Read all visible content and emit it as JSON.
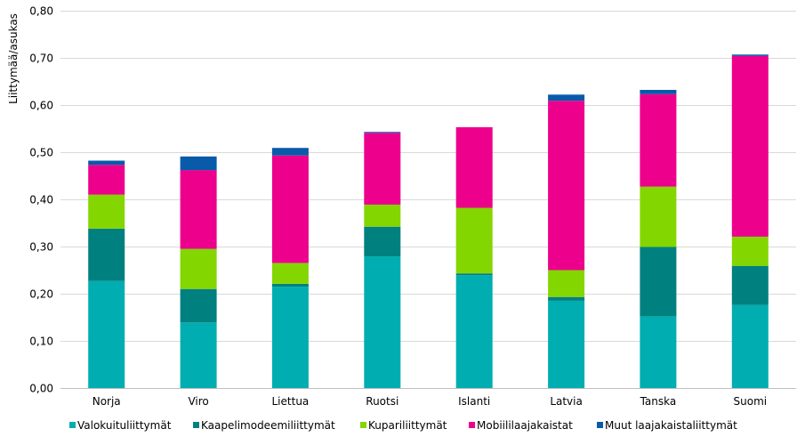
{
  "chart_data": {
    "type": "bar",
    "stacked": true,
    "title": "",
    "xlabel": "",
    "ylabel": "Liittymää/asukas",
    "ylim": [
      0,
      0.8
    ],
    "yticks": [
      0,
      0.1,
      0.2,
      0.3,
      0.4,
      0.5,
      0.6,
      0.7,
      0.8
    ],
    "ytick_labels": [
      "0,00",
      "0,10",
      "0,20",
      "0,30",
      "0,40",
      "0,50",
      "0,60",
      "0,70",
      "0,80"
    ],
    "grid": true,
    "legend_position": "bottom",
    "categories": [
      "Norja",
      "Viro",
      "Liettua",
      "Ruotsi",
      "Islanti",
      "Latvia",
      "Tanska",
      "Suomi"
    ],
    "series": [
      {
        "name": "Valokuituliittymät",
        "color": "#00adb0",
        "values": [
          0.227,
          0.139,
          0.215,
          0.279,
          0.239,
          0.185,
          0.152,
          0.176
        ]
      },
      {
        "name": "Kaapelimodeemiliittymät",
        "color": "#00807f",
        "values": [
          0.111,
          0.071,
          0.006,
          0.063,
          0.004,
          0.008,
          0.147,
          0.083
        ]
      },
      {
        "name": "Kupariliittymät",
        "color": "#84d600",
        "values": [
          0.072,
          0.085,
          0.044,
          0.047,
          0.139,
          0.057,
          0.128,
          0.062
        ]
      },
      {
        "name": "Mobiililaajakaistat",
        "color": "#ec008c",
        "values": [
          0.063,
          0.167,
          0.228,
          0.152,
          0.171,
          0.359,
          0.196,
          0.383
        ]
      },
      {
        "name": "Muut laajakaistaliittymät",
        "color": "#0a5aaa",
        "values": [
          0.009,
          0.029,
          0.016,
          0.002,
          0.0,
          0.013,
          0.009,
          0.003
        ]
      }
    ]
  }
}
